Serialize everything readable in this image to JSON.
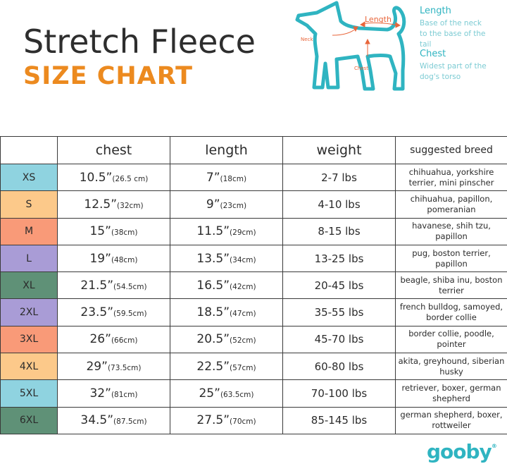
{
  "header": {
    "title": "Stretch Fleece",
    "subtitle": "SIZE CHART"
  },
  "diagram": {
    "labels": {
      "neck": "Neck",
      "length": "Length",
      "chest": "Chest"
    },
    "outline_color": "#2fb4c1",
    "arrow_color": "#e8653a"
  },
  "legend": [
    {
      "title": "Length",
      "desc": "Base of the neck to the base of the tail"
    },
    {
      "title": "Chest",
      "desc": "Widest part of the dog's torso"
    }
  ],
  "table": {
    "columns": [
      "",
      "chest",
      "length",
      "weight",
      "suggested breed"
    ],
    "rows": [
      {
        "size": "XS",
        "color": "#8fd3e0",
        "chest": "10.5”",
        "chest_cm": "(26.5 cm)",
        "length": "7”",
        "length_cm": "(18cm)",
        "weight": "2-7 lbs",
        "breed": "chihuahua, yorkshire terrier, mini pinscher"
      },
      {
        "size": "S",
        "color": "#fcc98a",
        "chest": "12.5”",
        "chest_cm": "(32cm)",
        "length": "9”",
        "length_cm": "(23cm)",
        "weight": "4-10 lbs",
        "breed": "chihuahua, papillon, pomeranian"
      },
      {
        "size": "M",
        "color": "#f99a78",
        "chest": "15”",
        "chest_cm": "(38cm)",
        "length": "11.5”",
        "length_cm": "(29cm)",
        "weight": "8-15 lbs",
        "breed": "havanese, shih tzu, papillon"
      },
      {
        "size": "L",
        "color": "#a99cd6",
        "chest": "19”",
        "chest_cm": "(48cm)",
        "length": "13.5”",
        "length_cm": "(34cm)",
        "weight": "13-25 lbs",
        "breed": "pug, boston terrier, papillon"
      },
      {
        "size": "XL",
        "color": "#5f9177",
        "chest": "21.5”",
        "chest_cm": "(54.5cm)",
        "length": "16.5”",
        "length_cm": "(42cm)",
        "weight": "20-45 lbs",
        "breed": "beagle, shiba inu, boston terrier"
      },
      {
        "size": "2XL",
        "color": "#a99cd6",
        "chest": "23.5”",
        "chest_cm": "(59.5cm)",
        "length": "18.5”",
        "length_cm": "(47cm)",
        "weight": "35-55 lbs",
        "breed": "french bulldog, samoyed, border collie"
      },
      {
        "size": "3XL",
        "color": "#f99a78",
        "chest": "26”",
        "chest_cm": "(66cm)",
        "length": "20.5”",
        "length_cm": "(52cm)",
        "weight": "45-70 lbs",
        "breed": "border collie, poodle, pointer"
      },
      {
        "size": "4XL",
        "color": "#fcc98a",
        "chest": "29”",
        "chest_cm": "(73.5cm)",
        "length": "22.5”",
        "length_cm": "(57cm)",
        "weight": "60-80 lbs",
        "breed": "akita, greyhound, siberian husky"
      },
      {
        "size": "5XL",
        "color": "#8fd3e0",
        "chest": "32”",
        "chest_cm": "(81cm)",
        "length": "25”",
        "length_cm": "(63.5cm)",
        "weight": "70-100 lbs",
        "breed": "retriever, boxer, german shepherd"
      },
      {
        "size": "6XL",
        "color": "#5f9177",
        "chest": "34.5”",
        "chest_cm": "(87.5cm)",
        "length": "27.5”",
        "length_cm": "(70cm)",
        "weight": "85-145 lbs",
        "breed": "german shepherd, boxer, rottweiler"
      }
    ]
  },
  "brand": {
    "logo": "gooby",
    "mark": "®"
  }
}
